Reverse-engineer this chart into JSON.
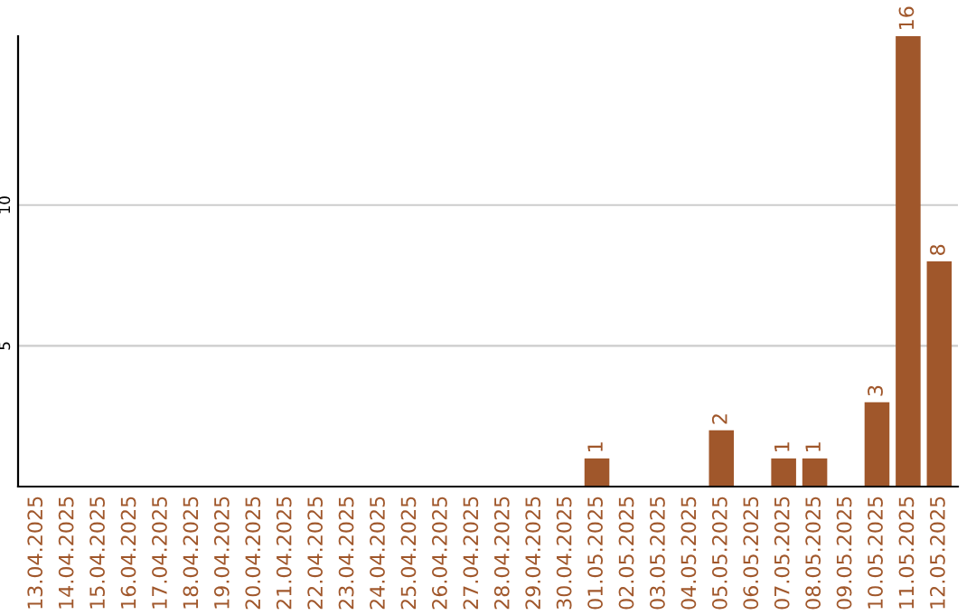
{
  "chart_data": {
    "type": "bar",
    "categories": [
      "13.04.2025",
      "14.04.2025",
      "15.04.2025",
      "16.04.2025",
      "17.04.2025",
      "18.04.2025",
      "19.04.2025",
      "20.04.2025",
      "21.04.2025",
      "22.04.2025",
      "23.04.2025",
      "24.04.2025",
      "25.04.2025",
      "26.04.2025",
      "27.04.2025",
      "28.04.2025",
      "29.04.2025",
      "30.04.2025",
      "01.05.2025",
      "02.05.2025",
      "03.05.2025",
      "04.05.2025",
      "05.05.2025",
      "06.05.2025",
      "07.05.2025",
      "08.05.2025",
      "09.05.2025",
      "10.05.2025",
      "11.05.2025",
      "12.05.2025"
    ],
    "values": [
      0,
      0,
      0,
      0,
      0,
      0,
      0,
      0,
      0,
      0,
      0,
      0,
      0,
      0,
      0,
      0,
      0,
      0,
      1,
      0,
      0,
      0,
      2,
      0,
      1,
      1,
      0,
      3,
      16,
      8
    ],
    "value_labels": [
      null,
      null,
      null,
      null,
      null,
      null,
      null,
      null,
      null,
      null,
      null,
      null,
      null,
      null,
      null,
      null,
      null,
      null,
      "1",
      null,
      null,
      null,
      "2",
      null,
      "1",
      "1",
      null,
      "3",
      "16",
      "8"
    ],
    "color": "#a0572b",
    "ylim": [
      0,
      16
    ],
    "yticks": [
      5,
      10
    ],
    "grid": "y",
    "legend": false
  }
}
